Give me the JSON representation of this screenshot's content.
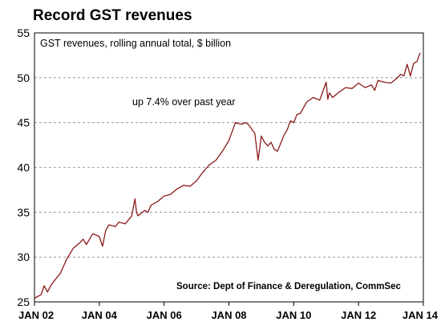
{
  "chart_data": {
    "type": "line",
    "title": "Record GST revenues",
    "subtitle": "GST revenues, rolling annual total, $ billion",
    "annotation": "up 7.4% over past year",
    "source": "Source: Dept of Finance & Deregulation, CommSec",
    "xlabel": "",
    "ylabel": "",
    "ylim": [
      25,
      55
    ],
    "yticks": [
      25,
      30,
      35,
      40,
      45,
      50,
      55
    ],
    "xlim": [
      2002.0,
      2014.0
    ],
    "xticks": [
      {
        "value": 2002,
        "label": "JAN 02"
      },
      {
        "value": 2004,
        "label": "JAN 04"
      },
      {
        "value": 2006,
        "label": "JAN 06"
      },
      {
        "value": 2008,
        "label": "JAN 08"
      },
      {
        "value": 2010,
        "label": "JAN 10"
      },
      {
        "value": 2012,
        "label": "JAN 12"
      },
      {
        "value": 2014,
        "label": "JAN 14"
      }
    ],
    "grid": "horizontal-dashed",
    "line_color": "#8b1a1a",
    "series": [
      {
        "x": [
          2002.0,
          2002.2,
          2002.3,
          2002.4,
          2002.5,
          2002.6,
          2002.8,
          2003.0,
          2003.2,
          2003.4,
          2003.5,
          2003.6,
          2003.8,
          2004.0,
          2004.1,
          2004.2,
          2004.3,
          2004.5,
          2004.6,
          2004.8,
          2005.0,
          2005.1,
          2005.15,
          2005.2,
          2005.4,
          2005.5,
          2005.6,
          2005.8,
          2006.0,
          2006.2,
          2006.4,
          2006.6,
          2006.8,
          2007.0,
          2007.2,
          2007.4,
          2007.6,
          2007.8,
          2008.0,
          2008.2,
          2008.4,
          2008.5,
          2008.6,
          2008.8,
          2008.9,
          2009.0,
          2009.1,
          2009.2,
          2009.3,
          2009.4,
          2009.5,
          2009.7,
          2009.8,
          2009.9,
          2010.0,
          2010.1,
          2010.2,
          2010.4,
          2010.6,
          2010.8,
          2011.0,
          2011.05,
          2011.1,
          2011.2,
          2011.4,
          2011.6,
          2011.8,
          2012.0,
          2012.2,
          2012.4,
          2012.5,
          2012.6,
          2012.8,
          2013.0,
          2013.2,
          2013.3,
          2013.4,
          2013.5,
          2013.6,
          2013.65,
          2013.7,
          2013.8,
          2013.9
        ],
        "values": [
          25.4,
          25.8,
          26.8,
          26.1,
          26.8,
          27.3,
          28.2,
          29.8,
          31.0,
          31.6,
          32.0,
          31.4,
          32.6,
          32.3,
          31.2,
          33.0,
          33.6,
          33.4,
          33.9,
          33.7,
          34.6,
          36.5,
          35.0,
          34.6,
          35.2,
          35.0,
          35.8,
          36.2,
          36.8,
          37.0,
          37.6,
          38.0,
          37.9,
          38.5,
          39.5,
          40.3,
          40.8,
          41.8,
          43.0,
          45.0,
          44.8,
          45.0,
          44.8,
          43.8,
          40.8,
          43.5,
          42.8,
          42.4,
          42.8,
          42.0,
          41.8,
          43.6,
          44.2,
          45.2,
          45.0,
          45.9,
          46.0,
          47.3,
          47.8,
          47.5,
          49.5,
          47.6,
          48.3,
          47.8,
          48.4,
          48.9,
          48.8,
          49.4,
          48.9,
          49.2,
          48.6,
          49.7,
          49.5,
          49.4,
          50.0,
          50.4,
          50.2,
          51.5,
          50.2,
          50.9,
          51.6,
          51.8,
          52.8
        ]
      }
    ]
  }
}
